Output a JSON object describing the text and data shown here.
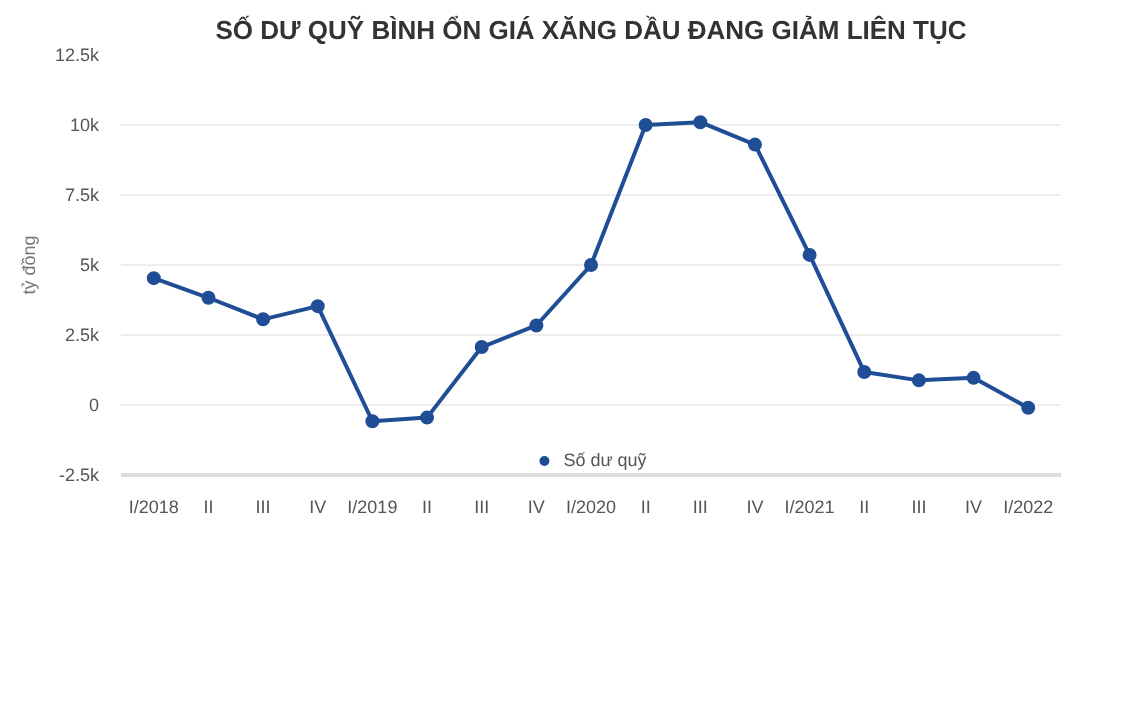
{
  "chart_data": {
    "type": "line",
    "title": "SỐ DƯ QUỸ BÌNH ỔN GIÁ XĂNG DẦU ĐANG GIẢM LIÊN TỤC",
    "ylabel": "tỷ đồng",
    "categories": [
      "I/2018",
      "II",
      "III",
      "IV",
      "I/2019",
      "II",
      "III",
      "IV",
      "I/2020",
      "II",
      "III",
      "IV",
      "I/2021",
      "II",
      "III",
      "IV",
      "I/2022"
    ],
    "series": [
      {
        "name": "Số dư quỹ",
        "color": "#1f4e96",
        "values": [
          4530,
          3830,
          3060,
          3530,
          -580,
          -450,
          2070,
          2840,
          5000,
          10000,
          10100,
          9300,
          5360,
          1180,
          880,
          970,
          -100
        ]
      }
    ],
    "ylim": [
      -2500,
      12500
    ],
    "yticks": [
      {
        "value": -2500,
        "label": "-2.5k"
      },
      {
        "value": 0,
        "label": "0"
      },
      {
        "value": 2500,
        "label": "2.5k"
      },
      {
        "value": 5000,
        "label": "5k"
      },
      {
        "value": 7500,
        "label": "7.5k"
      },
      {
        "value": 10000,
        "label": "10k"
      },
      {
        "value": 12500,
        "label": "12.5k"
      }
    ],
    "grid": "y",
    "legend": "bottom",
    "marker": "circle",
    "line_style": "solid"
  }
}
